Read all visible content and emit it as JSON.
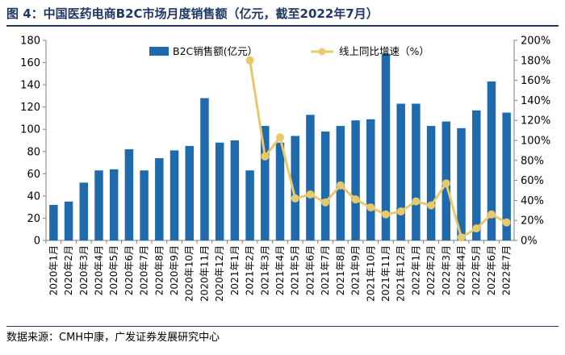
{
  "figure": {
    "title": "图 4：中国医药电商B2C市场月度销售额（亿元，截至2022年7月）",
    "source": "数据来源：CMH中康，广发证券发展研究中心"
  },
  "chart_data": {
    "type": "bar+line",
    "categories": [
      "2020年1月",
      "2020年2月",
      "2020年3月",
      "2020年4月",
      "2020年5月",
      "2020年6月",
      "2020年7月",
      "2020年8月",
      "2020年9月",
      "2020年10月",
      "2020年11月",
      "2020年12月",
      "2021年1月",
      "2021年2月",
      "2021年3月",
      "2021年4月",
      "2021年5月",
      "2021年6月",
      "2021年7月",
      "2021年8月",
      "2021年9月",
      "2021年10月",
      "2021年11月",
      "2021年12月",
      "2022年1月",
      "2022年2月",
      "2022年3月",
      "2022年4月",
      "2022年5月",
      "2022年6月",
      "2022年7月"
    ],
    "series": [
      {
        "name": "B2C销售额(亿元）",
        "kind": "bar",
        "axis": "left",
        "color": "#1f6aad",
        "values": [
          32,
          35,
          52,
          63,
          64,
          82,
          63,
          74,
          81,
          85,
          128,
          88,
          90,
          63,
          103,
          88,
          94,
          113,
          98,
          103,
          108,
          109,
          168,
          123,
          123,
          103,
          107,
          101,
          117,
          143,
          115
        ]
      },
      {
        "name": "线上同比增速（%）",
        "kind": "line",
        "axis": "right",
        "color": "#e8c96a",
        "values": [
          null,
          null,
          null,
          null,
          null,
          null,
          null,
          null,
          null,
          null,
          null,
          null,
          null,
          180,
          84,
          103,
          42,
          46,
          38,
          55,
          41,
          33,
          26,
          29,
          39,
          35,
          57,
          3,
          12,
          26,
          18
        ]
      }
    ],
    "y_left": {
      "min": 0,
      "max": 180,
      "step": 20,
      "ticks": [
        "0",
        "20",
        "40",
        "60",
        "80",
        "100",
        "120",
        "140",
        "160",
        "180"
      ]
    },
    "y_right": {
      "min": 0,
      "max": 200,
      "step": 20,
      "ticks": [
        "0%",
        "20%",
        "40%",
        "60%",
        "80%",
        "100%",
        "120%",
        "140%",
        "160%",
        "180%",
        "200%"
      ]
    },
    "legend": "top",
    "grid": false
  }
}
